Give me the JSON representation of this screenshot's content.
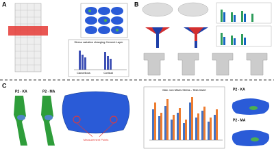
{
  "panel_a": {
    "label": "A",
    "chart_title": "Stress variation changing Cement Layer",
    "categories": [
      "Cancellous",
      "Cortical"
    ]
  },
  "panel_b": {
    "label": "B"
  },
  "panel_c": {
    "label": "C",
    "left_labels": [
      "P2 - KA",
      "P2 - MA"
    ],
    "annotation": "Measurement Points",
    "chart_title": "Max. von Mises Stress - Tibia Insert",
    "right_labels": [
      "P2 - KA",
      "P2 - MA"
    ]
  }
}
